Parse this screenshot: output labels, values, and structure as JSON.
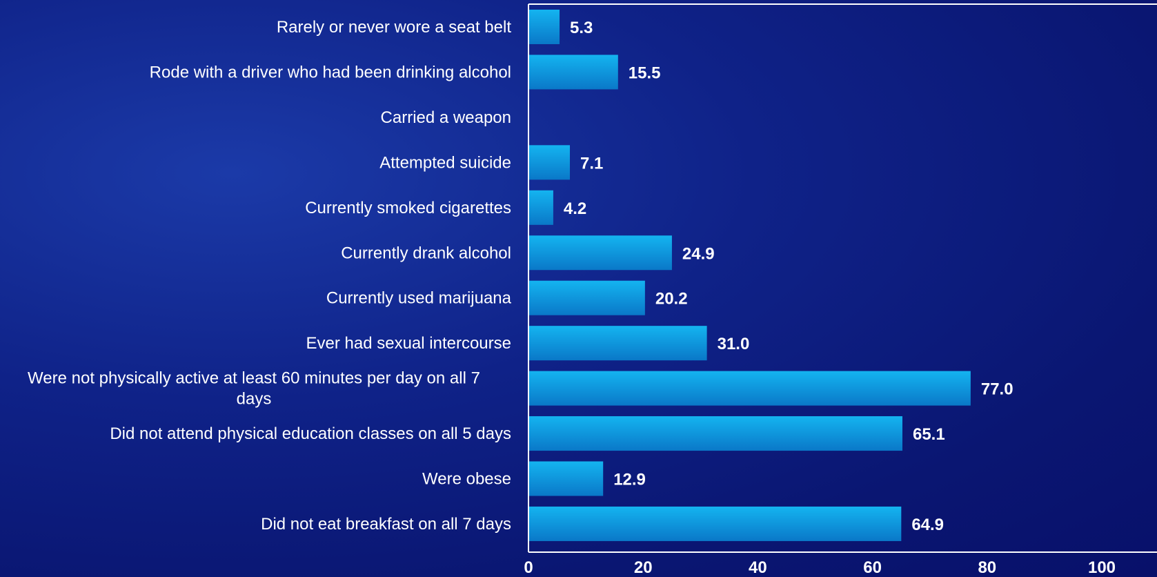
{
  "chart_data": {
    "type": "bar",
    "orientation": "horizontal",
    "categories": [
      "Rarely or never wore a seat belt",
      "Rode with a driver who had been drinking alcohol",
      "Carried a weapon",
      "Attempted suicide",
      "Currently smoked cigarettes",
      "Currently drank alcohol",
      "Currently used marijuana ",
      "Ever had sexual intercourse",
      "Were not physically active at least 60 minutes per day on all 7 days",
      "Did not attend physical education classes on all 5 days ",
      "Were obese",
      "Did not eat breakfast on all 7 days"
    ],
    "category_lines": [
      [
        "Rarely or never wore a seat belt"
      ],
      [
        "Rode with a driver who had been drinking alcohol"
      ],
      [
        "Carried a weapon"
      ],
      [
        "Attempted suicide"
      ],
      [
        "Currently smoked cigarettes"
      ],
      [
        "Currently drank alcohol"
      ],
      [
        "Currently used marijuana "
      ],
      [
        "Ever had sexual intercourse"
      ],
      [
        "Were not physically active at least 60 minutes per day on all 7",
        "days"
      ],
      [
        "Did not attend physical education classes on all 5 days "
      ],
      [
        "Were obese"
      ],
      [
        "Did not eat breakfast on all 7 days"
      ]
    ],
    "values": [
      5.3,
      15.5,
      null,
      7.1,
      4.2,
      24.9,
      20.2,
      31.0,
      77.0,
      65.1,
      12.9,
      64.9
    ],
    "value_labels": [
      "5.3",
      "15.5",
      "",
      "7.1",
      "4.2",
      "24.9",
      "20.2",
      "31.0",
      "77.0",
      "65.1",
      "12.9",
      "64.9"
    ],
    "xlim": [
      0,
      100
    ],
    "xticks": [
      "0",
      "20",
      "40",
      "60",
      "80",
      "100"
    ],
    "title": "",
    "xlabel": "",
    "ylabel": "",
    "grid": false,
    "colors": {
      "bar_top": "#14b4f0",
      "bar_bottom": "#0a78c8",
      "axis": "#ffffff",
      "text": "#ffffff"
    }
  }
}
